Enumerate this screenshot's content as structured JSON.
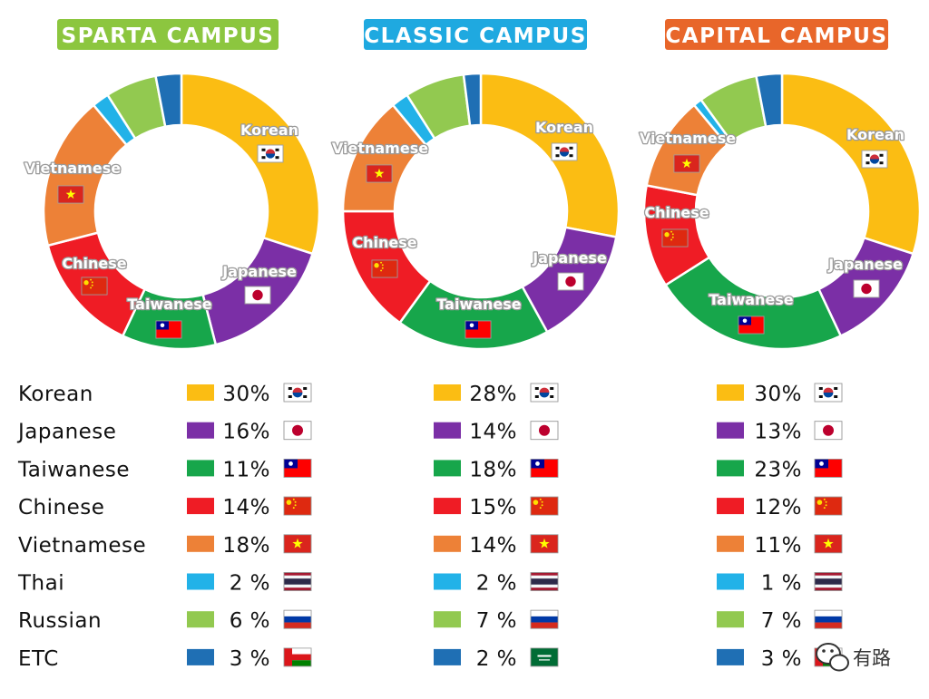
{
  "chart_data": [
    {
      "type": "donut",
      "title": "SPARTA CAMPUS",
      "title_color": "#8cc63f",
      "categories": [
        "Korean",
        "Japanese",
        "Taiwanese",
        "Chinese",
        "Vietnamese",
        "Thai",
        "Russian",
        "ETC"
      ],
      "values": [
        30,
        16,
        11,
        14,
        18,
        2,
        6,
        3
      ],
      "value_labels": [
        "30%",
        "16%",
        "11%",
        "14%",
        "18%",
        "2 %",
        "6 %",
        "3 %"
      ]
    },
    {
      "type": "donut",
      "title": "CLASSIC CAMPUS",
      "title_color": "#1fa9e0",
      "categories": [
        "Korean",
        "Japanese",
        "Taiwanese",
        "Chinese",
        "Vietnamese",
        "Thai",
        "Russian",
        "ETC"
      ],
      "values": [
        28,
        14,
        18,
        15,
        14,
        2,
        7,
        2
      ],
      "value_labels": [
        "28%",
        "14%",
        "18%",
        "15%",
        "14%",
        "2 %",
        "7 %",
        "2 %"
      ]
    },
    {
      "type": "donut",
      "title": "CAPITAL CAMPUS",
      "title_color": "#e8662a",
      "categories": [
        "Korean",
        "Japanese",
        "Taiwanese",
        "Chinese",
        "Vietnamese",
        "Thai",
        "Russian",
        "ETC"
      ],
      "values": [
        30,
        13,
        23,
        12,
        11,
        1,
        7,
        3
      ],
      "value_labels": [
        "30%",
        "13%",
        "23%",
        "12%",
        "11%",
        "1 %",
        "7 %",
        "3 %"
      ]
    }
  ],
  "segment_labels": [
    "Korean",
    "Japanese",
    "Taiwanese",
    "Chinese",
    "Vietnamese"
  ],
  "legend_names": [
    "Korean",
    "Japanese",
    "Taiwanese",
    "Chinese",
    "Vietnamese",
    "Thai",
    "Russian",
    "ETC"
  ],
  "colors": {
    "Korean": "#fbbd13",
    "Japanese": "#7b2fa6",
    "Taiwanese": "#17a64b",
    "Chinese": "#ef1c25",
    "Vietnamese": "#ed8137",
    "Thai": "#22b2e8",
    "Russian": "#92c950",
    "ETC": "#1f6fb4"
  },
  "flags": [
    "korea-flag",
    "japan-flag",
    "taiwan-flag",
    "china-flag",
    "vietnam-flag",
    "thailand-flag",
    "russia-flag",
    "oman-flag",
    "saudi-flag"
  ],
  "watermark": {
    "text": "有路",
    "icon": "wechat-icon"
  }
}
